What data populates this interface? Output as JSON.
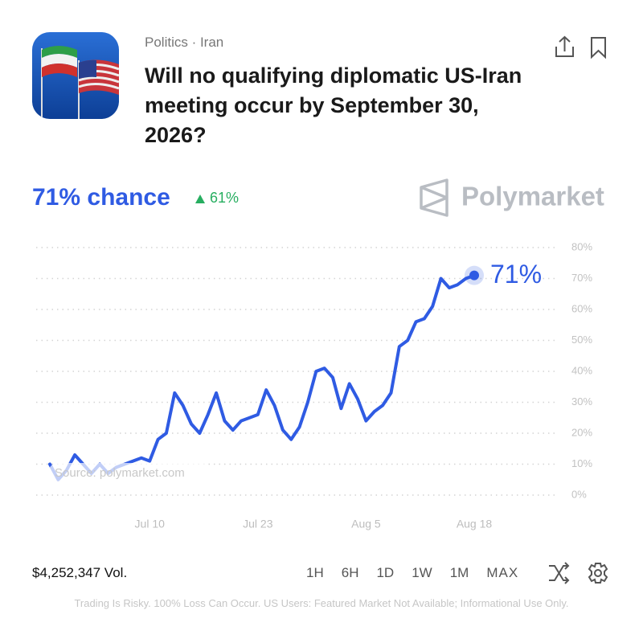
{
  "header": {
    "category": "Politics · Iran",
    "title": "Will no qualifying diplomatic US-Iran meeting occur by September 30, 2026?"
  },
  "summary": {
    "chance": "71% chance",
    "change": "61%",
    "brand": "Polymarket"
  },
  "chart_data": {
    "type": "line",
    "color": "#2f5be3",
    "x": [
      "Jun 28",
      "Jun 29",
      "Jun 30",
      "Jul 1",
      "Jul 2",
      "Jul 3",
      "Jul 4",
      "Jul 5",
      "Jul 6",
      "Jul 7",
      "Jul 8",
      "Jul 9",
      "Jul 10",
      "Jul 11",
      "Jul 12",
      "Jul 13",
      "Jul 14",
      "Jul 15",
      "Jul 16",
      "Jul 17",
      "Jul 18",
      "Jul 19",
      "Jul 20",
      "Jul 21",
      "Jul 22",
      "Jul 23",
      "Jul 24",
      "Jul 25",
      "Jul 26",
      "Jul 27",
      "Jul 28",
      "Jul 29",
      "Jul 30",
      "Jul 31",
      "Aug 1",
      "Aug 2",
      "Aug 3",
      "Aug 4",
      "Aug 5",
      "Aug 6",
      "Aug 7",
      "Aug 8",
      "Aug 9",
      "Aug 10",
      "Aug 11",
      "Aug 12",
      "Aug 13",
      "Aug 14",
      "Aug 15",
      "Aug 16",
      "Aug 17",
      "Aug 18"
    ],
    "values": [
      10,
      5,
      8,
      13,
      10,
      7,
      10,
      7,
      9,
      10,
      11,
      12,
      11,
      18,
      20,
      33,
      29,
      23,
      20,
      26,
      33,
      24,
      21,
      24,
      25,
      26,
      34,
      29,
      21,
      18,
      22,
      30,
      40,
      41,
      38,
      28,
      36,
      31,
      24,
      27,
      29,
      33,
      48,
      50,
      56,
      57,
      61,
      70,
      67,
      68,
      70,
      71
    ],
    "value_labels": [
      null,
      null,
      null,
      null,
      null,
      null,
      null,
      null,
      null,
      null,
      null,
      null,
      null,
      null,
      null,
      null,
      null,
      null,
      null,
      null,
      null,
      null,
      null,
      null,
      null,
      null,
      null,
      null,
      null,
      null,
      null,
      null,
      null,
      null,
      null,
      null,
      null,
      null,
      null,
      null,
      null,
      null,
      null,
      null,
      null,
      null,
      null,
      null,
      null,
      null,
      null,
      "71%"
    ],
    "xlim": [
      "Jun 28",
      "Aug 18"
    ],
    "xticks": [
      "Jul 10",
      "Jul 23",
      "Aug 5",
      "Aug 18"
    ],
    "ylim": [
      0,
      80
    ],
    "yticks": [
      {
        "value": 0,
        "label": "0%"
      },
      {
        "value": 10,
        "label": "10%"
      },
      {
        "value": 20,
        "label": "20%"
      },
      {
        "value": 30,
        "label": "30%"
      },
      {
        "value": 40,
        "label": "40%"
      },
      {
        "value": 50,
        "label": "50%"
      },
      {
        "value": 60,
        "label": "60%"
      },
      {
        "value": 70,
        "label": "70%"
      },
      {
        "value": 80,
        "label": "80%"
      }
    ],
    "grid": true,
    "source": "Source: polymarket.com"
  },
  "footer": {
    "volume": "$4,252,347 Vol.",
    "ranges": [
      "1H",
      "6H",
      "1D",
      "1W",
      "1M",
      "MAX"
    ],
    "disclaimer": "Trading Is Risky. 100% Loss Can Occur. US Users: Featured Market Not Available; Informational Use Only."
  }
}
